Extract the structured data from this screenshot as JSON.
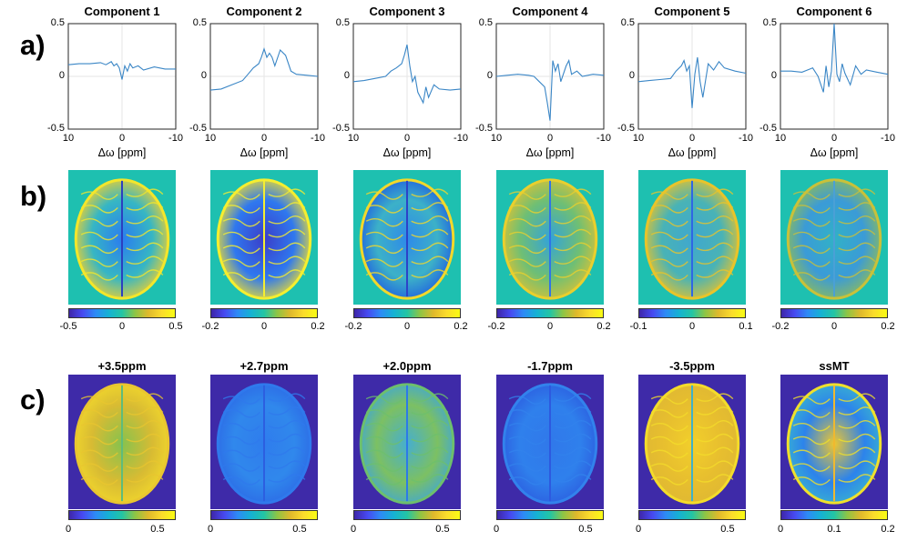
{
  "figure": {
    "row_labels": [
      "a)",
      "b)",
      "c)"
    ],
    "xlabel": "Δω [ppm]"
  },
  "chart_data": [
    {
      "type": "line",
      "title": "Component 1",
      "xlabel": "Δω [ppm]",
      "xlim": [
        10,
        -10
      ],
      "ylim": [
        -0.5,
        0.5
      ],
      "x_ticks": [
        "10",
        "0",
        "-10"
      ],
      "y_ticks": [
        "0.5",
        "0",
        "-0.5"
      ],
      "x": [
        10,
        8,
        6,
        4,
        3,
        2,
        1.5,
        1,
        0.5,
        0,
        -0.5,
        -1,
        -1.5,
        -2,
        -3,
        -4,
        -6,
        -8,
        -10
      ],
      "y": [
        0.11,
        0.12,
        0.12,
        0.13,
        0.11,
        0.14,
        0.1,
        0.12,
        0.08,
        -0.03,
        0.1,
        0.05,
        0.12,
        0.08,
        0.1,
        0.06,
        0.09,
        0.07,
        0.07
      ]
    },
    {
      "type": "line",
      "title": "Component 2",
      "xlabel": "Δω [ppm]",
      "xlim": [
        10,
        -10
      ],
      "ylim": [
        -0.5,
        0.5
      ],
      "x_ticks": [
        "10",
        "0",
        "-10"
      ],
      "y_ticks": [
        "0.5",
        "0",
        "-0.5"
      ],
      "x": [
        10,
        8,
        6,
        4,
        3,
        2,
        1,
        0.5,
        0,
        -0.5,
        -1,
        -1.5,
        -2,
        -3,
        -4,
        -5,
        -6,
        -8,
        -10
      ],
      "y": [
        -0.13,
        -0.12,
        -0.08,
        -0.04,
        0.02,
        0.08,
        0.12,
        0.18,
        0.26,
        0.18,
        0.22,
        0.18,
        0.1,
        0.25,
        0.2,
        0.05,
        0.02,
        0.01,
        0.0
      ]
    },
    {
      "type": "line",
      "title": "Component 3",
      "xlabel": "Δω [ppm]",
      "xlim": [
        10,
        -10
      ],
      "ylim": [
        -0.5,
        0.5
      ],
      "x_ticks": [
        "10",
        "0",
        "-10"
      ],
      "y_ticks": [
        "0.5",
        "0",
        "-0.5"
      ],
      "x": [
        10,
        8,
        6,
        4,
        3,
        2,
        1,
        0.5,
        0,
        -0.5,
        -1,
        -1.5,
        -2,
        -3,
        -3.5,
        -4,
        -5,
        -6,
        -8,
        -10
      ],
      "y": [
        -0.05,
        -0.04,
        -0.02,
        0.0,
        0.05,
        0.08,
        0.12,
        0.2,
        0.3,
        0.1,
        -0.05,
        0.0,
        -0.15,
        -0.25,
        -0.1,
        -0.2,
        -0.08,
        -0.12,
        -0.13,
        -0.12
      ]
    },
    {
      "type": "line",
      "title": "Component 4",
      "xlabel": "Δω [ppm]",
      "xlim": [
        10,
        -10
      ],
      "ylim": [
        -0.5,
        0.5
      ],
      "x_ticks": [
        "10",
        "0",
        "-10"
      ],
      "y_ticks": [
        "0.5",
        "0",
        "-0.5"
      ],
      "x": [
        10,
        8,
        6,
        4,
        3,
        2,
        1,
        0.5,
        0,
        -0.5,
        -1,
        -1.5,
        -2,
        -3,
        -3.5,
        -4,
        -5,
        -6,
        -8,
        -10
      ],
      "y": [
        0.0,
        0.01,
        0.02,
        0.01,
        0.0,
        -0.05,
        -0.1,
        -0.25,
        -0.42,
        0.15,
        0.05,
        0.12,
        -0.05,
        0.1,
        0.15,
        0.02,
        0.05,
        0.0,
        0.02,
        0.01
      ]
    },
    {
      "type": "line",
      "title": "Component 5",
      "xlabel": "Δω [ppm]",
      "xlim": [
        10,
        -10
      ],
      "ylim": [
        -0.5,
        0.5
      ],
      "x_ticks": [
        "10",
        "0",
        "-10"
      ],
      "y_ticks": [
        "0.5",
        "0",
        "-0.5"
      ],
      "x": [
        10,
        8,
        6,
        4,
        3,
        2,
        1.5,
        1,
        0.5,
        0,
        -0.5,
        -1,
        -1.5,
        -2,
        -3,
        -4,
        -5,
        -6,
        -8,
        -10
      ],
      "y": [
        -0.05,
        -0.04,
        -0.03,
        -0.02,
        0.05,
        0.1,
        0.15,
        0.05,
        0.1,
        -0.3,
        0.02,
        0.18,
        -0.05,
        -0.2,
        0.12,
        0.06,
        0.14,
        0.08,
        0.05,
        0.03
      ]
    },
    {
      "type": "line",
      "title": "Component 6",
      "xlabel": "Δω [ppm]",
      "xlim": [
        10,
        -10
      ],
      "ylim": [
        -0.5,
        0.5
      ],
      "x_ticks": [
        "10",
        "0",
        "-10"
      ],
      "y_ticks": [
        "0.5",
        "0",
        "-0.5"
      ],
      "x": [
        10,
        8,
        6,
        4,
        3,
        2,
        1.5,
        1,
        0.5,
        0,
        -0.5,
        -1,
        -1.5,
        -2,
        -3,
        -4,
        -5,
        -6,
        -8,
        -10
      ],
      "y": [
        0.05,
        0.05,
        0.04,
        0.08,
        0.0,
        -0.15,
        0.1,
        -0.1,
        0.05,
        0.5,
        0.02,
        -0.05,
        0.12,
        0.03,
        -0.08,
        0.1,
        0.02,
        0.06,
        0.04,
        0.02
      ]
    }
  ],
  "row_b": [
    {
      "name": "Component 1",
      "clim": [
        "-0.5",
        "0",
        "0.5"
      ],
      "style": "c1"
    },
    {
      "name": "Component 2",
      "clim": [
        "-0.2",
        "0",
        "0.2"
      ],
      "style": "c2"
    },
    {
      "name": "Component 3",
      "clim": [
        "-0.2",
        "0",
        "0.2"
      ],
      "style": "c3"
    },
    {
      "name": "Component 4",
      "clim": [
        "-0.2",
        "0",
        "0.2"
      ],
      "style": "c4"
    },
    {
      "name": "Component 5",
      "clim": [
        "-0.1",
        "0",
        "0.1"
      ],
      "style": "c5"
    },
    {
      "name": "Component 6",
      "clim": [
        "-0.2",
        "0",
        "0.2"
      ],
      "style": "c6"
    }
  ],
  "row_c": [
    {
      "title": "+3.5ppm",
      "clim": [
        "0",
        "0.5"
      ],
      "style": "m1"
    },
    {
      "title": "+2.7ppm",
      "clim": [
        "0",
        "0.5"
      ],
      "style": "m2"
    },
    {
      "title": "+2.0ppm",
      "clim": [
        "0",
        "0.5"
      ],
      "style": "m3"
    },
    {
      "title": "-1.7ppm",
      "clim": [
        "0",
        "0.5"
      ],
      "style": "m4"
    },
    {
      "title": "-3.5ppm",
      "clim": [
        "0",
        "0.5"
      ],
      "style": "m5"
    },
    {
      "title": "ssMT",
      "clim": [
        "0",
        "0.1",
        "0.2"
      ],
      "style": "m6"
    }
  ],
  "colors": {
    "line": "#3a86c6",
    "background_b": "#1ec0b0",
    "background_c": "#3e2aa8"
  }
}
